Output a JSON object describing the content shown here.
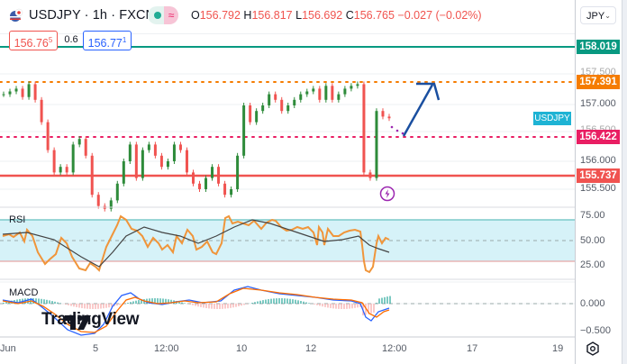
{
  "header": {
    "symbol": "USDJPY · 1h · FXCM",
    "flag_icon": "us-jp-flag-icon",
    "status_icons": [
      "market-open-dot-icon",
      "delayed-wave-icon"
    ],
    "ohlc": {
      "o_label": "O",
      "o": "156.792",
      "h_label": "H",
      "h": "156.817",
      "l_label": "L",
      "l": "156.692",
      "c_label": "C",
      "c": "156.765",
      "change": "−0.027 (−0.02%)"
    },
    "bid": "156.76",
    "bid_sup": "5",
    "spread": "0.6",
    "ask": "156.77",
    "ask_sup": "1",
    "currency": "JPY"
  },
  "price_axis": {
    "ticks": [
      "157.500",
      "157.000",
      "156.500",
      "156.000",
      "155.500"
    ],
    "tags": [
      {
        "value": "158.019",
        "color": "#089981"
      },
      {
        "value": "157.391",
        "color": "#f57c00"
      },
      {
        "value": "156.422",
        "color": "#e91e63"
      },
      {
        "value": "155.737",
        "color": "#f05350"
      }
    ],
    "symbol_tag": "USDJPY"
  },
  "rsi": {
    "label": "RSI",
    "ticks": [
      "75.00",
      "50.00",
      "25.00"
    ]
  },
  "macd": {
    "label": "MACD",
    "ticks": [
      "0.000",
      "−0.500"
    ]
  },
  "time_axis": {
    "ticks": [
      "Jun",
      "5",
      "12:00",
      "10",
      "12",
      "12:00",
      "17",
      "19"
    ]
  },
  "watermark": "TradingView",
  "chart_data": [
    {
      "type": "candlestick",
      "title": "USDJPY · 1h · FXCM",
      "ylim": [
        155.3,
        158.2
      ],
      "x_ticks": [
        "Jun",
        "5",
        "12:00",
        "10",
        "12",
        "12:00",
        "17",
        "19"
      ],
      "y_ticks": [
        155.5,
        156.0,
        156.5,
        157.0,
        157.5
      ],
      "last": {
        "open": 156.792,
        "high": 156.817,
        "low": 156.692,
        "close": 156.765,
        "change": -0.027,
        "change_pct": -0.02
      },
      "horizontal_levels": [
        {
          "value": 158.019,
          "style": "solid",
          "color": "#089981"
        },
        {
          "value": 157.391,
          "style": "dotted",
          "color": "#f57c00"
        },
        {
          "value": 156.422,
          "style": "dotted",
          "color": "#e91e63"
        },
        {
          "value": 155.737,
          "style": "solid",
          "color": "#f05350"
        }
      ],
      "approx_close_path": [
        157.2,
        157.25,
        157.3,
        157.15,
        157.38,
        157.1,
        156.7,
        156.2,
        155.8,
        155.9,
        155.8,
        156.3,
        156.4,
        156.1,
        155.4,
        155.2,
        155.15,
        155.3,
        155.6,
        156.0,
        156.3,
        155.7,
        156.2,
        156.3,
        156.1,
        155.9,
        156.0,
        156.3,
        156.2,
        155.8,
        155.6,
        155.5,
        155.7,
        155.9,
        155.6,
        155.4,
        155.5,
        156.1,
        157.0,
        156.7,
        156.9,
        157.0,
        157.2,
        157.1,
        156.9,
        157.0,
        157.1,
        157.2,
        157.25,
        157.3,
        157.1,
        157.35,
        157.1,
        157.2,
        157.3,
        157.35,
        157.38,
        155.8,
        155.7,
        156.9,
        156.8,
        156.77
      ],
      "annotation": "Projected arrow: dip to 156.422 then rise to 157.391"
    },
    {
      "type": "line",
      "title": "RSI",
      "ylim": [
        0,
        100
      ],
      "bands": [
        30,
        70
      ],
      "series": [
        {
          "name": "RSI",
          "color": "#f0953a",
          "values": [
            55,
            53,
            57,
            48,
            42,
            35,
            30,
            45,
            55,
            40,
            38,
            33,
            28,
            36,
            60,
            75,
            72,
            68,
            70,
            58,
            55,
            62,
            64,
            58,
            52,
            57,
            68,
            70,
            60,
            45,
            60,
            54,
            56,
            58,
            60,
            25,
            22,
            48,
            50,
            50
          ]
        },
        {
          "name": "RSI MA",
          "color": "#4a4a4a",
          "values": [
            52,
            52,
            50,
            47,
            44,
            40,
            36,
            38,
            43,
            44,
            46,
            45,
            42,
            40,
            45,
            55,
            62,
            65,
            66,
            64,
            61,
            60,
            60,
            59,
            58,
            58,
            60,
            62,
            62,
            58,
            56,
            55,
            54,
            55,
            56,
            48,
            42,
            40,
            39,
            38
          ]
        }
      ]
    },
    {
      "type": "line",
      "title": "MACD",
      "y_ticks": [
        0.0,
        -0.5
      ],
      "series": [
        {
          "name": "MACD",
          "color": "#2962ff"
        },
        {
          "name": "Signal",
          "color": "#ff6d00"
        },
        {
          "name": "Histogram",
          "color": "mixed"
        }
      ]
    }
  ]
}
